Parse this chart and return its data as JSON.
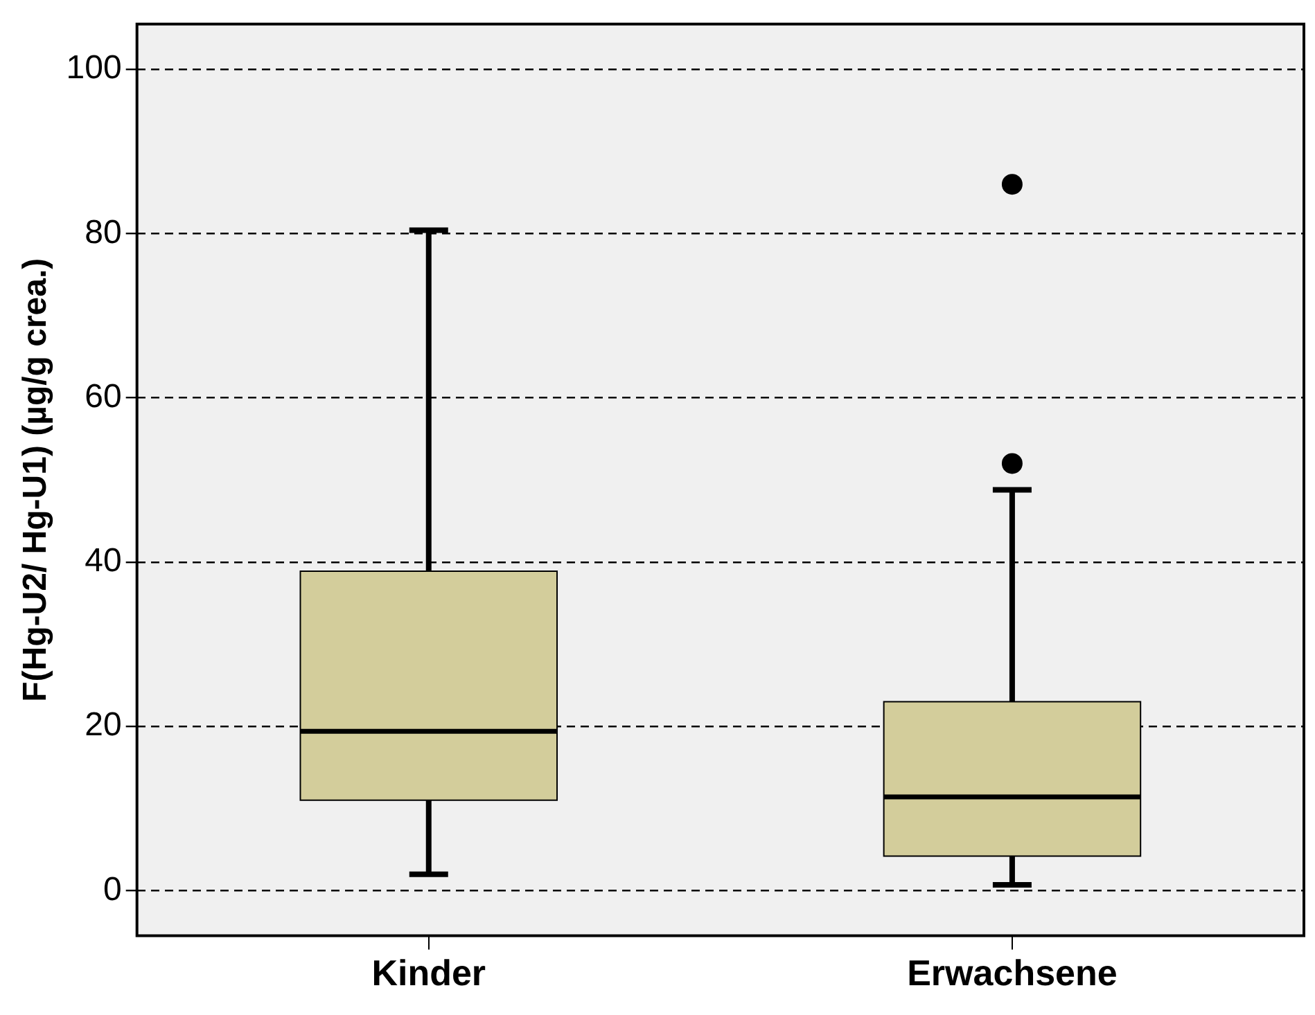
{
  "chart_data": {
    "type": "box",
    "ylabel": "F(Hg-U2/ Hg-U1) (µg/g crea.)",
    "categories": [
      "Kinder",
      "Erwachsene"
    ],
    "color": "#d3cd9b",
    "boxes": [
      {
        "low": 2,
        "q1": 11,
        "median": 19.4,
        "q3": 38.9,
        "high": 80.4
      },
      {
        "low": 0.7,
        "q1": 4.2,
        "median": 11.4,
        "q3": 23,
        "high": 48.8,
        "outliers": [
          52,
          86
        ]
      }
    ],
    "ylim": [
      -5.5,
      105.5
    ],
    "yticks": [
      0,
      20,
      40,
      60,
      80,
      100
    ],
    "grid": "y"
  }
}
